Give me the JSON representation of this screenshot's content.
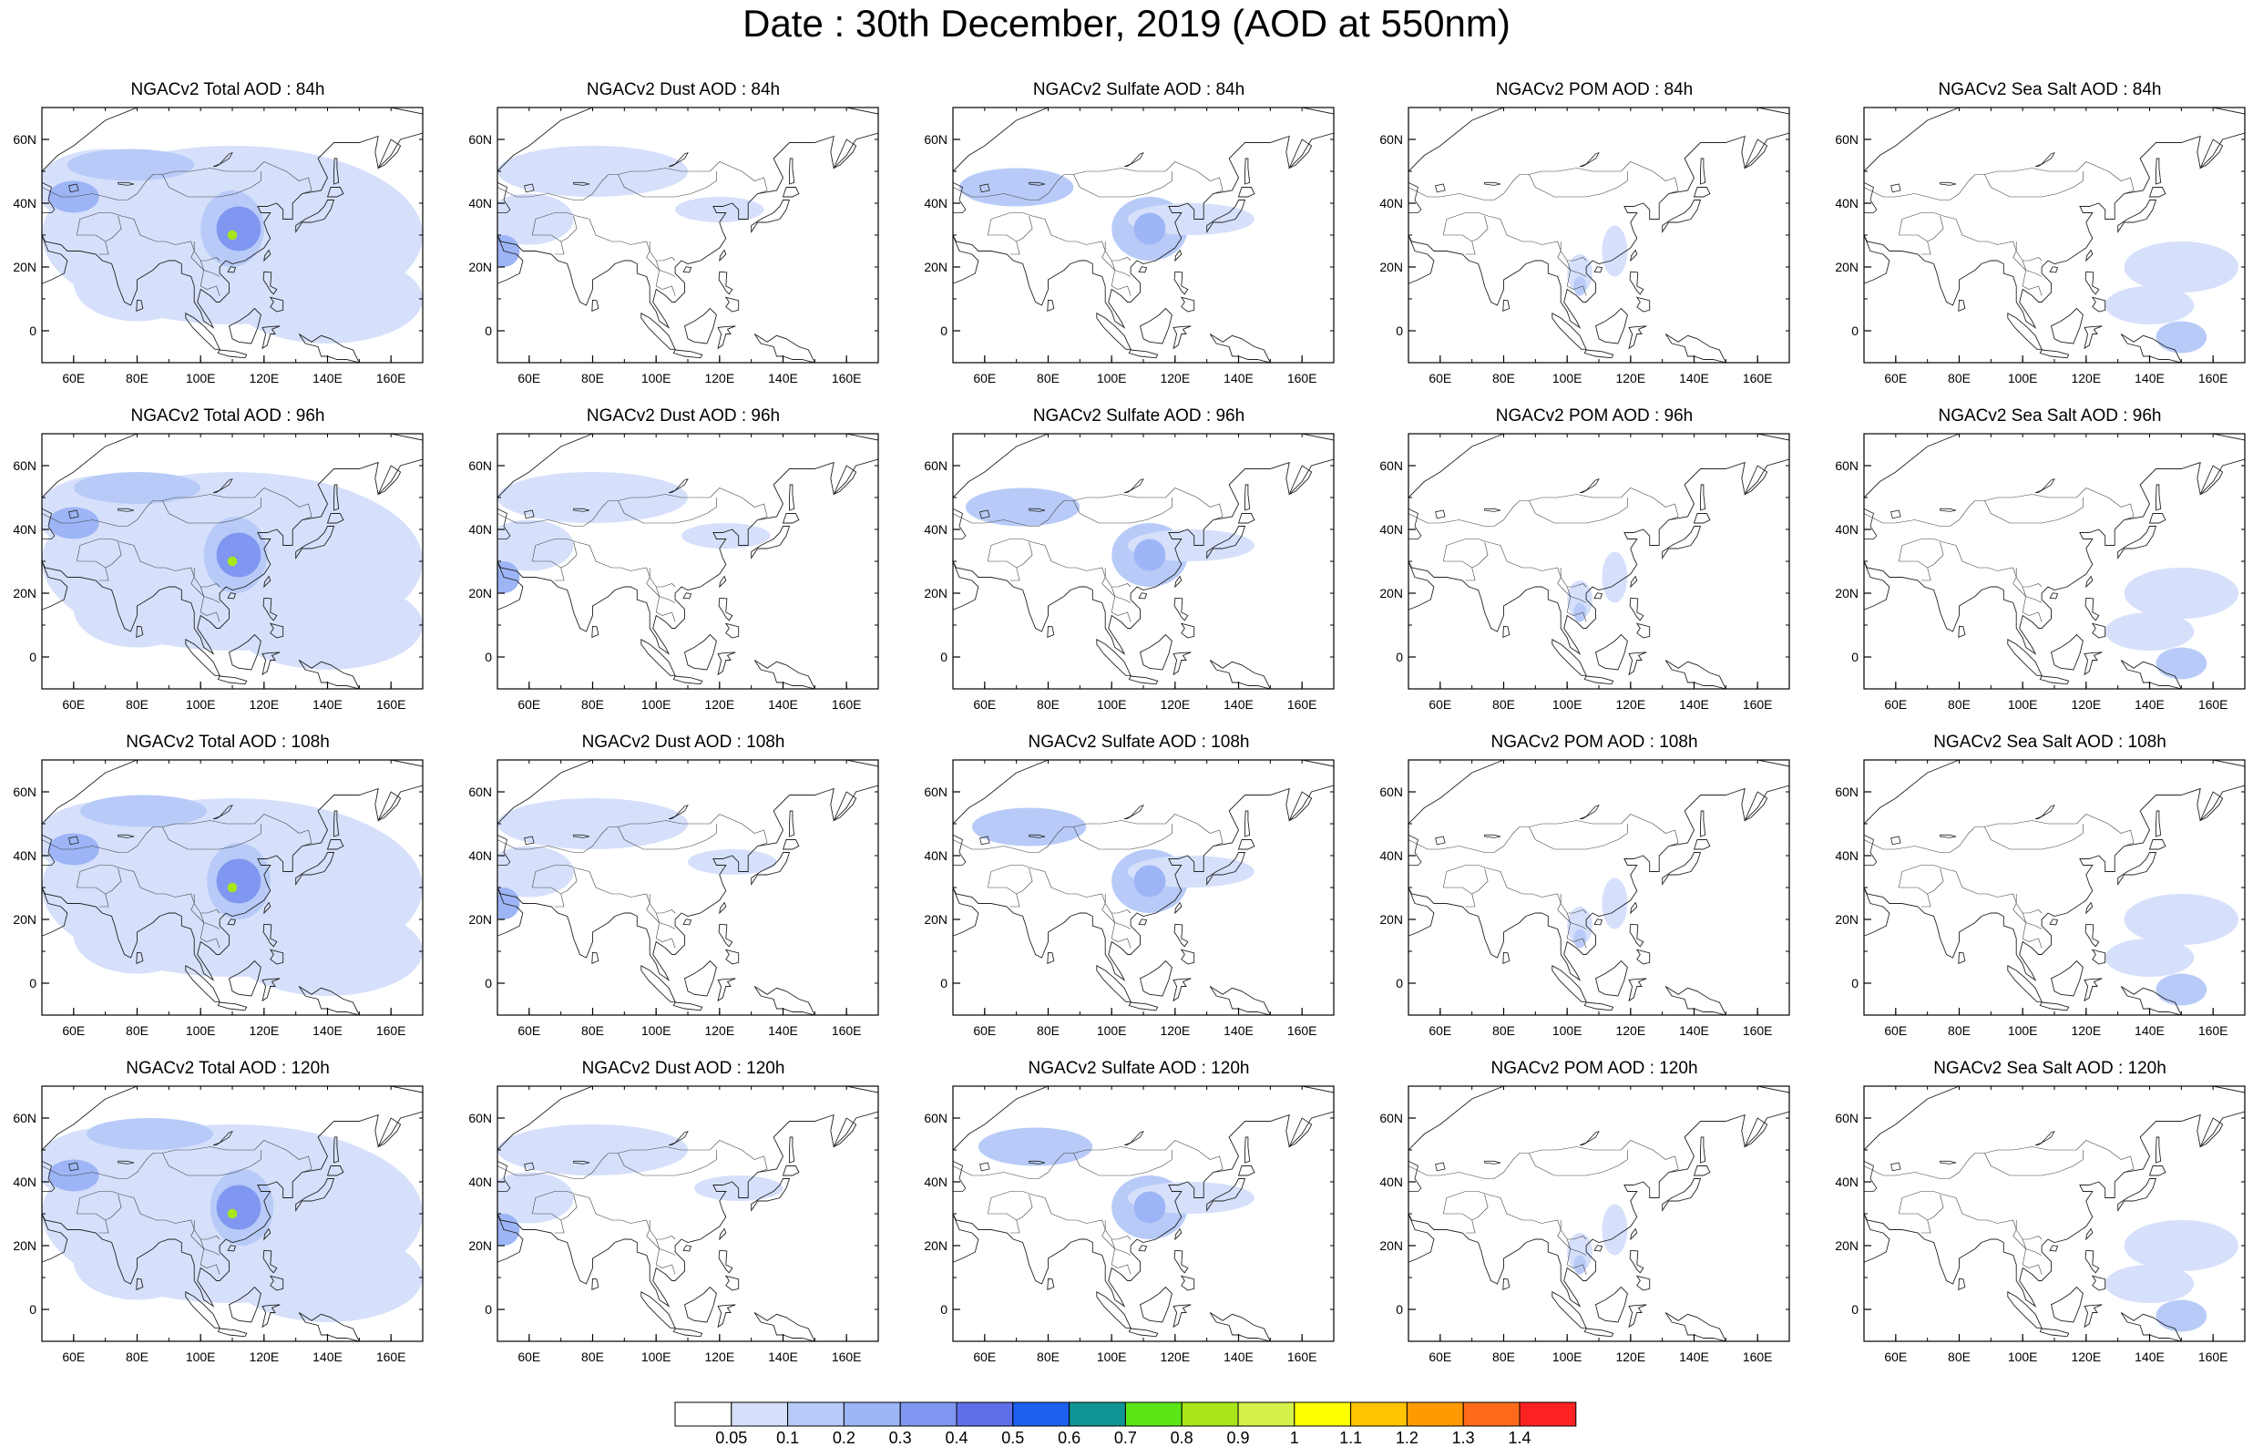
{
  "title": "Date : 30th December, 2019 (AOD at 550nm)",
  "rows": [
    {
      "panels": [
        "NGACv2 Total AOD : 84h",
        "NGACv2 Dust AOD : 84h",
        "NGACv2 Sulfate AOD : 84h",
        "NGACv2 POM AOD : 84h",
        "NGACv2 Sea Salt AOD : 84h"
      ]
    },
    {
      "panels": [
        "NGACv2 Total AOD : 96h",
        "NGACv2 Dust AOD : 96h",
        "NGACv2 Sulfate AOD : 96h",
        "NGACv2 POM AOD : 96h",
        "NGACv2 Sea Salt AOD : 96h"
      ]
    },
    {
      "panels": [
        "NGACv2 Total AOD : 108h",
        "NGACv2 Dust AOD : 108h",
        "NGACv2 Sulfate AOD : 108h",
        "NGACv2 POM AOD : 108h",
        "NGACv2 Sea Salt AOD : 108h"
      ]
    },
    {
      "panels": [
        "NGACv2 Total AOD : 120h",
        "NGACv2 Dust AOD : 120h",
        "NGACv2 Sulfate AOD : 120h",
        "NGACv2 POM AOD : 120h",
        "NGACv2 Sea Salt  AOD : 120h"
      ]
    }
  ],
  "map_extent": {
    "lon": [
      50,
      170
    ],
    "lat": [
      -10,
      70
    ]
  },
  "lon_ticks": [
    "60E",
    "80E",
    "100E",
    "120E",
    "140E",
    "160E"
  ],
  "lat_ticks": [
    "60N",
    "40N",
    "20N",
    "0"
  ],
  "colorbar": {
    "labels": [
      "0.05",
      "0.1",
      "0.2",
      "0.3",
      "0.4",
      "0.5",
      "0.6",
      "0.7",
      "0.8",
      "0.9",
      "1",
      "1.1",
      "1.2",
      "1.3",
      "1.4"
    ],
    "colors": [
      "#ffffff",
      "#d6e0fb",
      "#b8cbf8",
      "#9db5f6",
      "#7f97f0",
      "#5f6fe8",
      "#1a5ff0",
      "#0f9494",
      "#5ce617",
      "#a8e61a",
      "#d4f04a",
      "#ffff00",
      "#ffc500",
      "#ff9a00",
      "#ff6a1a",
      "#ff2222"
    ]
  }
}
